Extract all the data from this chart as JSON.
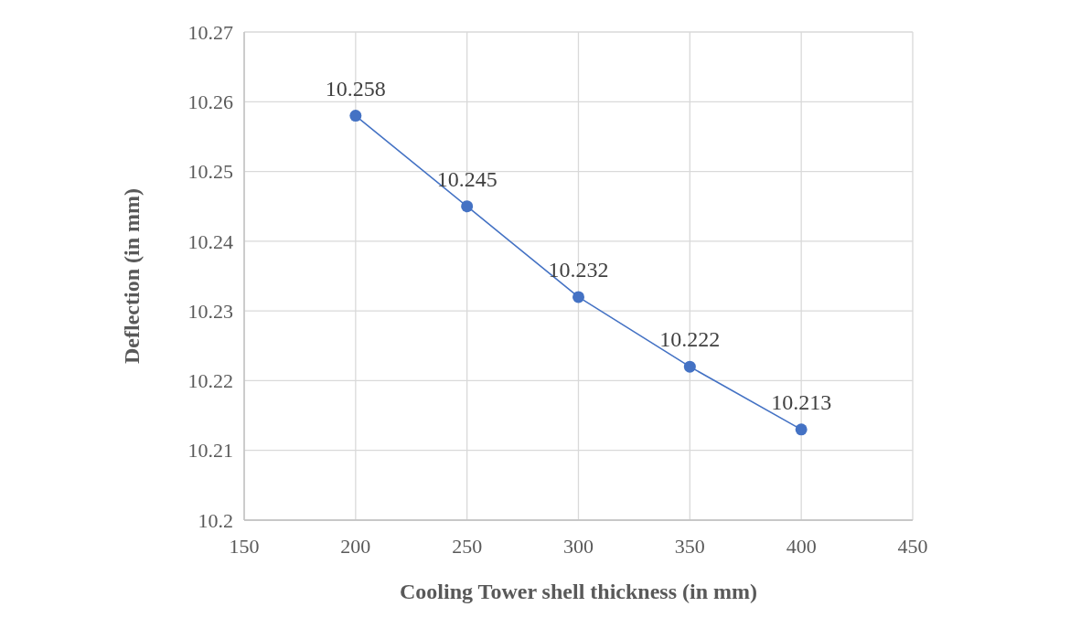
{
  "chart_data": {
    "type": "line",
    "xlabel": "Cooling Tower shell thickness (in mm)",
    "ylabel": "Deflection (in mm)",
    "x": [
      200,
      250,
      300,
      350,
      400
    ],
    "series": [
      {
        "color": "#4472c4",
        "values": [
          10.258,
          10.245,
          10.232,
          10.222,
          10.213
        ]
      }
    ],
    "xlim": [
      150,
      450
    ],
    "xticks": [
      150,
      200,
      250,
      300,
      350,
      400,
      450
    ],
    "ylim": [
      10.2,
      10.27
    ],
    "yticks": [
      {
        "value": 10.2,
        "label": "10.2"
      },
      10.21,
      10.22,
      10.23,
      10.24,
      10.25,
      10.26,
      10.27
    ],
    "grid": true,
    "marker": "circle",
    "line_style": "solid",
    "data_labels": true
  }
}
